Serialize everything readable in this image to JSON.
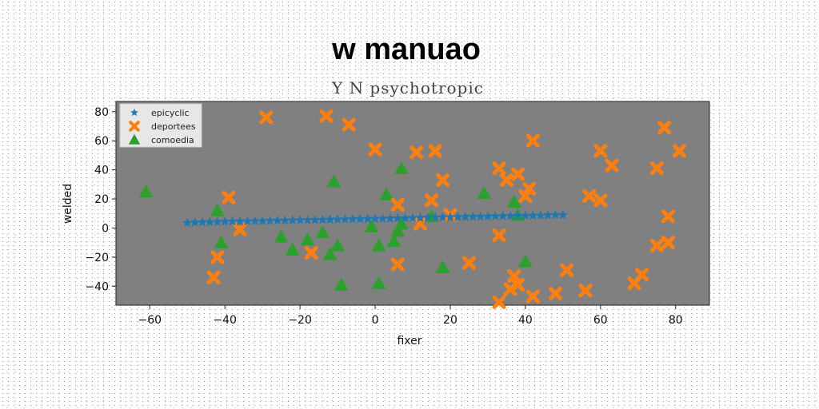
{
  "chart_data": {
    "type": "scatter",
    "title": "w manuao",
    "subtitle": "Y N psychotropic",
    "xlabel": "fixer",
    "ylabel": "welded",
    "xlim": [
      -69,
      89
    ],
    "ylim": [
      -53,
      87
    ],
    "xticks": [
      -60,
      -40,
      -20,
      0,
      20,
      40,
      60,
      80
    ],
    "yticks": [
      -40,
      -20,
      0,
      20,
      40,
      60,
      80
    ],
    "grid": false,
    "legend_position": "top-left",
    "background_color": "#808080",
    "series": [
      {
        "name": "epicyclic",
        "marker": "star",
        "color": "#1f77b4",
        "points": [
          [
            -50,
            3.6
          ],
          [
            -48,
            3.8
          ],
          [
            -46,
            4.0
          ],
          [
            -44,
            4.1
          ],
          [
            -42,
            4.2
          ],
          [
            -40,
            4.4
          ],
          [
            -38,
            4.5
          ],
          [
            -36,
            4.6
          ],
          [
            -34,
            4.7
          ],
          [
            -32,
            4.8
          ],
          [
            -30,
            4.9
          ],
          [
            -28,
            5.0
          ],
          [
            -26,
            5.1
          ],
          [
            -24,
            5.2
          ],
          [
            -22,
            5.3
          ],
          [
            -20,
            5.4
          ],
          [
            -18,
            5.5
          ],
          [
            -16,
            5.6
          ],
          [
            -14,
            5.7
          ],
          [
            -12,
            5.8
          ],
          [
            -10,
            5.9
          ],
          [
            -8,
            6.0
          ],
          [
            -6,
            6.1
          ],
          [
            -4,
            6.2
          ],
          [
            -2,
            6.3
          ],
          [
            0,
            6.4
          ],
          [
            2,
            6.5
          ],
          [
            4,
            6.6
          ],
          [
            6,
            6.7
          ],
          [
            8,
            6.8
          ],
          [
            10,
            6.9
          ],
          [
            12,
            7.0
          ],
          [
            14,
            7.2
          ],
          [
            16,
            7.3
          ],
          [
            18,
            7.4
          ],
          [
            20,
            7.5
          ],
          [
            22,
            7.6
          ],
          [
            24,
            7.7
          ],
          [
            26,
            7.8
          ],
          [
            28,
            7.9
          ],
          [
            30,
            8.0
          ],
          [
            32,
            8.1
          ],
          [
            34,
            8.2
          ],
          [
            36,
            8.3
          ],
          [
            38,
            8.4
          ],
          [
            40,
            8.5
          ],
          [
            42,
            8.6
          ],
          [
            44,
            8.7
          ],
          [
            46,
            8.8
          ],
          [
            48,
            8.9
          ],
          [
            50,
            9.0
          ]
        ]
      },
      {
        "name": "deportees",
        "marker": "x-thick",
        "color": "#ff7f0e",
        "points": [
          [
            -29,
            76
          ],
          [
            -13,
            77
          ],
          [
            -7,
            71
          ],
          [
            0,
            54
          ],
          [
            11,
            52
          ],
          [
            16,
            53
          ],
          [
            18,
            33
          ],
          [
            33,
            41
          ],
          [
            35,
            33
          ],
          [
            38,
            37
          ],
          [
            41,
            27
          ],
          [
            40,
            22
          ],
          [
            42,
            60
          ],
          [
            57,
            22
          ],
          [
            60,
            19
          ],
          [
            60,
            53
          ],
          [
            63,
            43
          ],
          [
            75,
            41
          ],
          [
            77,
            69
          ],
          [
            81,
            53
          ],
          [
            78,
            8
          ],
          [
            78,
            -10
          ],
          [
            75,
            -12
          ],
          [
            71,
            -32
          ],
          [
            69,
            -38
          ],
          [
            56,
            -43
          ],
          [
            51,
            -29
          ],
          [
            48,
            -45
          ],
          [
            42,
            -47
          ],
          [
            38,
            -39
          ],
          [
            37,
            -33
          ],
          [
            36,
            -42
          ],
          [
            33,
            -51
          ],
          [
            33,
            -5
          ],
          [
            25,
            -24
          ],
          [
            20,
            9
          ],
          [
            15,
            19
          ],
          [
            12,
            3
          ],
          [
            6,
            16
          ],
          [
            6,
            -25
          ],
          [
            -17,
            -17
          ],
          [
            -36,
            -1
          ],
          [
            -39,
            21
          ],
          [
            -42,
            -20
          ],
          [
            -43,
            -34
          ]
        ]
      },
      {
        "name": "comoedia",
        "marker": "triangle",
        "color": "#2ca02c",
        "points": [
          [
            -61,
            25
          ],
          [
            -42,
            12
          ],
          [
            -41,
            -10
          ],
          [
            -25,
            -6
          ],
          [
            -22,
            -15
          ],
          [
            -18,
            -8
          ],
          [
            -14,
            -3
          ],
          [
            -12,
            -18
          ],
          [
            -11,
            32
          ],
          [
            -10,
            -12
          ],
          [
            -9,
            -39
          ],
          [
            -1,
            1
          ],
          [
            1,
            -12
          ],
          [
            1,
            -38
          ],
          [
            3,
            23
          ],
          [
            5,
            -9
          ],
          [
            6,
            -2
          ],
          [
            7,
            3
          ],
          [
            7,
            41
          ],
          [
            15,
            8
          ],
          [
            18,
            -27
          ],
          [
            29,
            24
          ],
          [
            37,
            18
          ],
          [
            38,
            9
          ],
          [
            40,
            -23
          ]
        ]
      }
    ]
  }
}
